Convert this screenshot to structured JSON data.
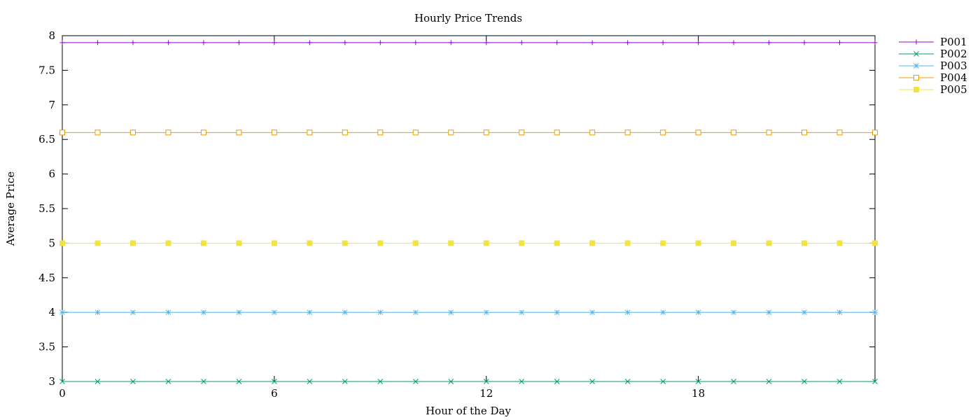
{
  "chart_data": {
    "type": "line",
    "title": "Hourly Price Trends",
    "xlabel": "Hour of the Day",
    "ylabel": "Average Price",
    "xlim": [
      0,
      23
    ],
    "ylim": [
      3,
      8
    ],
    "xticks": [
      0,
      6,
      12,
      18
    ],
    "yticks": [
      3,
      3.5,
      4,
      4.5,
      5,
      5.5,
      6,
      6.5,
      7,
      7.5,
      8
    ],
    "ytick_labels": [
      "3",
      "3.5",
      "4",
      "4.5",
      "5",
      "5.5",
      "6",
      "6.5",
      "7",
      "7.5",
      "8"
    ],
    "xtick_labels": [
      "0",
      "6",
      "12",
      "18"
    ],
    "grid": false,
    "legend_position": "top-right outside",
    "x": [
      0,
      1,
      2,
      3,
      4,
      5,
      6,
      7,
      8,
      9,
      10,
      11,
      12,
      13,
      14,
      15,
      16,
      17,
      18,
      19,
      20,
      21,
      22,
      23
    ],
    "series": [
      {
        "name": "P001",
        "color": "#9400d3",
        "marker": "plus",
        "value": 7.9
      },
      {
        "name": "P002",
        "color": "#009e73",
        "marker": "cross",
        "value": 3.0
      },
      {
        "name": "P003",
        "color": "#56b4e9",
        "marker": "star",
        "value": 4.0
      },
      {
        "name": "P004",
        "color": "#e69f00",
        "marker": "open-square",
        "value": 6.6
      },
      {
        "name": "P005",
        "color": "#f0e442",
        "marker": "filled-square",
        "value": 5.0
      }
    ]
  }
}
